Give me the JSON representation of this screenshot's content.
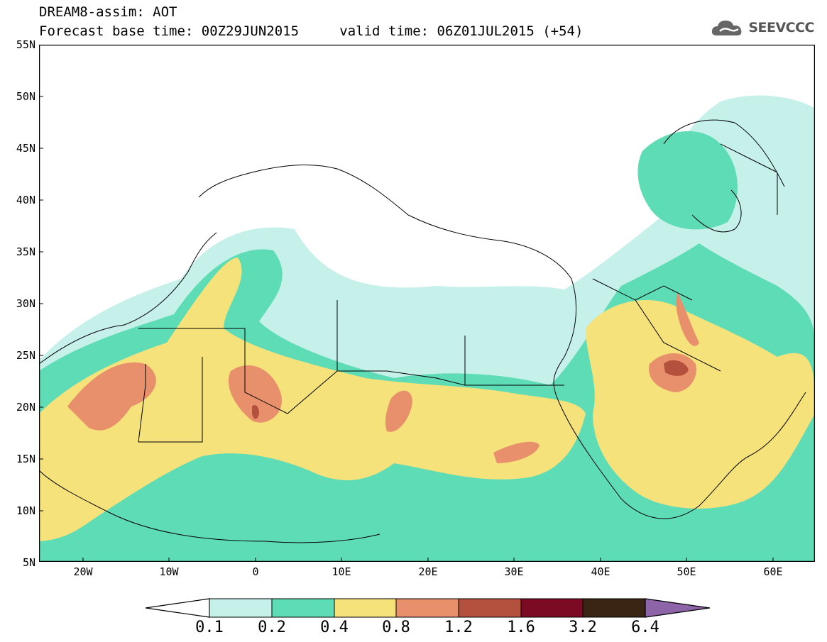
{
  "title": {
    "line1": "DREAM8-assim: AOT",
    "line2_base": "Forecast base time: 00Z29JUN2015",
    "line2_valid": "valid time: 06Z01JUL2015 (+54)"
  },
  "logo": {
    "text": "SEEVCCC",
    "icon": "cloud-icon"
  },
  "map": {
    "lon_range": [
      -25,
      65
    ],
    "lat_range": [
      5,
      55
    ],
    "lat_ticks": [
      "55N",
      "50N",
      "45N",
      "40N",
      "35N",
      "30N",
      "25N",
      "20N",
      "15N",
      "10N",
      "5N"
    ],
    "lon_ticks": [
      "20W",
      "10W",
      "0",
      "10E",
      "20E",
      "30E",
      "40E",
      "50E",
      "60E"
    ],
    "variable": "AOT"
  },
  "colorbar": {
    "labels": [
      "0.1",
      "0.2",
      "0.4",
      "0.8",
      "1.2",
      "1.6",
      "3.2",
      "6.4"
    ],
    "colors": [
      "#c6f0ea",
      "#5edcb6",
      "#f6e27a",
      "#e8906c",
      "#b4503e",
      "#7d0a24",
      "#3a2414",
      "#8e64a8"
    ],
    "under_color": "#ffffff"
  }
}
